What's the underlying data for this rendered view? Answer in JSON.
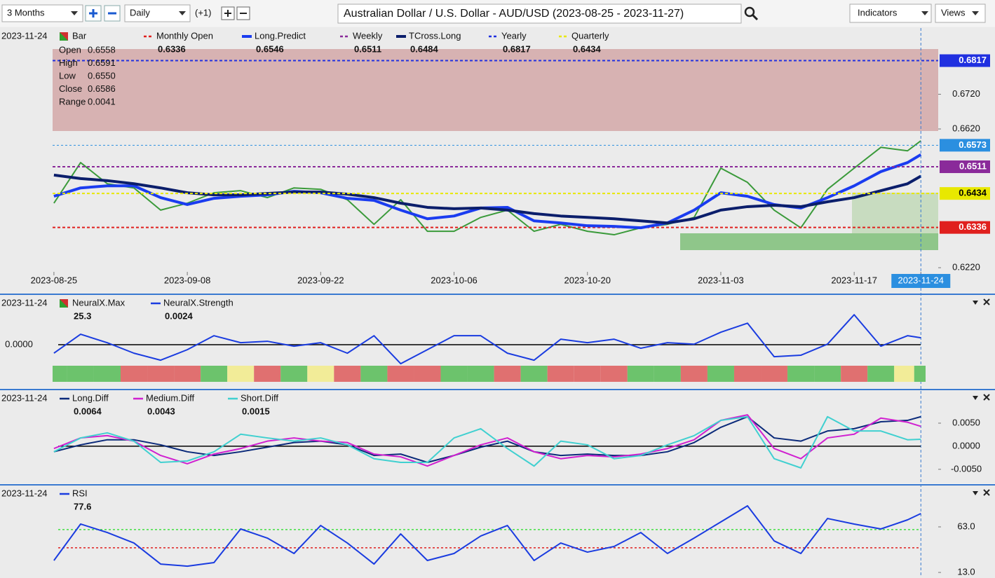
{
  "toolbar": {
    "range": "3 Months",
    "interval": "Daily",
    "offset": "(+1)",
    "title": "Australian Dollar / U.S. Dollar - AUD/USD (2023-08-25 - 2023-11-27)",
    "indicators": "Indicators",
    "views": "Views"
  },
  "chart_data": [
    {
      "type": "line",
      "date": "2023-11-24",
      "ohlc": [
        {
          "name": "Open",
          "value": 0.6558
        },
        {
          "name": "High",
          "value": 0.6591
        },
        {
          "name": "Low",
          "value": 0.655,
          "label": "0.6550"
        },
        {
          "name": "Close",
          "value": 0.6586
        },
        {
          "name": "Range",
          "value": 0.0041
        }
      ],
      "x": [
        0,
        2,
        4,
        6,
        8,
        10,
        12,
        14,
        16,
        18,
        20,
        22,
        24,
        26,
        28,
        30,
        32,
        34,
        36,
        38,
        40,
        42,
        44,
        46,
        48,
        50,
        52,
        54,
        56,
        58,
        60,
        62,
        64,
        65
      ],
      "xlim": [
        -0.1,
        66.3
      ],
      "xticks": [
        {
          "value": 0,
          "label": "2023-08-25"
        },
        {
          "value": 10,
          "label": "2023-09-08"
        },
        {
          "value": 20,
          "label": "2023-09-22"
        },
        {
          "value": 30,
          "label": "2023-10-06"
        },
        {
          "value": 40,
          "label": "2023-10-20"
        },
        {
          "value": 50,
          "label": "2023-11-03"
        },
        {
          "value": 60,
          "label": "2023-11-17"
        },
        {
          "value": 65,
          "label": "2023-11-24"
        }
      ],
      "cursor": 65,
      "ylim": [
        0.6204,
        0.6911
      ],
      "yticks": [
        {
          "value": 0.622,
          "label": "0.6220"
        },
        {
          "value": 0.662,
          "label": "0.6620"
        },
        {
          "value": 0.672,
          "label": "0.6720"
        }
      ],
      "last_price": {
        "value": 0.6573,
        "color": "#2b8fe0"
      },
      "series": [
        {
          "name": "Bar",
          "marker": "square",
          "color": "#3a9a3a",
          "values": [
            0.6406,
            0.6523,
            0.6462,
            0.645,
            0.6386,
            0.6406,
            0.6436,
            0.6442,
            0.6422,
            0.645,
            0.6446,
            0.6416,
            0.6345,
            0.6416,
            0.6325,
            0.6325,
            0.6365,
            0.6386,
            0.6325,
            0.6345,
            0.6325,
            0.6315,
            0.6335,
            0.6345,
            0.6365,
            0.6507,
            0.6466,
            0.6386,
            0.6335,
            0.6446,
            0.6507,
            0.6567,
            0.6557,
            0.6586
          ]
        },
        {
          "name": "Monthly Open",
          "color": "#e0201e",
          "style": "dotted",
          "value": 0.6336,
          "level": true
        },
        {
          "name": "Long.Predict",
          "color": "#1a3cf0",
          "width": 4,
          "value": 0.6546,
          "values": [
            0.6426,
            0.645,
            0.6456,
            0.6456,
            0.6422,
            0.6402,
            0.642,
            0.6426,
            0.643,
            0.644,
            0.6436,
            0.642,
            0.6414,
            0.6386,
            0.6361,
            0.6369,
            0.6392,
            0.6394,
            0.6355,
            0.6349,
            0.6341,
            0.6339,
            0.6335,
            0.6349,
            0.6386,
            0.6436,
            0.6426,
            0.6402,
            0.6392,
            0.6422,
            0.6456,
            0.6497,
            0.6523,
            0.6546
          ]
        },
        {
          "name": "Weekly",
          "color": "#8a2a9a",
          "style": "dotted",
          "value": 0.6511,
          "level": true
        },
        {
          "name": "TCross.Long",
          "color": "#0b1e6b",
          "width": 4,
          "value": 0.6484,
          "values": [
            0.6487,
            0.6477,
            0.6471,
            0.6462,
            0.645,
            0.6436,
            0.643,
            0.643,
            0.6434,
            0.6438,
            0.6438,
            0.6432,
            0.6422,
            0.6406,
            0.6394,
            0.639,
            0.6392,
            0.6386,
            0.6376,
            0.6369,
            0.6365,
            0.6361,
            0.6355,
            0.6349,
            0.6361,
            0.6386,
            0.6396,
            0.64,
            0.6396,
            0.641,
            0.6422,
            0.6442,
            0.6462,
            0.6484
          ]
        },
        {
          "name": "Yearly",
          "color": "#2030e0",
          "style": "dotted",
          "value": 0.6817,
          "level": true
        },
        {
          "name": "Quarterly",
          "color": "#e8e800",
          "style": "dotted",
          "value": 0.6434,
          "level": true
        }
      ]
    },
    {
      "type": "line",
      "date": "2023-11-24",
      "x": [
        0,
        2,
        4,
        6,
        8,
        10,
        12,
        14,
        16,
        18,
        20,
        22,
        24,
        26,
        28,
        30,
        32,
        34,
        36,
        38,
        40,
        42,
        44,
        46,
        48,
        50,
        52,
        54,
        56,
        58,
        60,
        62,
        64,
        65
      ],
      "xlim": [
        -0.1,
        66.3
      ],
      "ylim": [
        -0.0072,
        0.013
      ],
      "yticks": [
        {
          "value": 0,
          "label": "0.0000"
        }
      ],
      "series": [
        {
          "name": "NeuralX.Max",
          "marker": "square",
          "value": 25.3,
          "colors": [
            "#6cc36c",
            "#6cc36c",
            "#6cc36c",
            "#e07070",
            "#e07070",
            "#e07070",
            "#6cc36c",
            "#f2ec98",
            "#e07070",
            "#6cc36c",
            "#f2ec98",
            "#e07070",
            "#6cc36c",
            "#e07070",
            "#e07070",
            "#6cc36c",
            "#6cc36c",
            "#e07070",
            "#6cc36c",
            "#e07070",
            "#e07070",
            "#e07070",
            "#6cc36c",
            "#6cc36c",
            "#e07070",
            "#6cc36c",
            "#e07070",
            "#e07070",
            "#6cc36c",
            "#6cc36c",
            "#e07070",
            "#6cc36c",
            "#f2ec98",
            "#6cc36c"
          ]
        },
        {
          "name": "NeuralX.Strength",
          "color": "#1a3ce0",
          "value": 0.0024,
          "values": [
            -0.0029,
            0.0036,
            0.0007,
            -0.0029,
            -0.0053,
            -0.0017,
            0.0031,
            0.0007,
            0.0012,
            -0.0005,
            0.0007,
            -0.0029,
            0.0031,
            -0.0065,
            -0.0017,
            0.0031,
            0.0031,
            -0.0029,
            -0.0053,
            0.0019,
            0.0007,
            0.0019,
            -0.0012,
            0.0007,
            0.0002,
            0.0043,
            0.0074,
            -0.0041,
            -0.0036,
            0.0002,
            0.0103,
            -0.0005,
            0.0031,
            0.0024
          ]
        }
      ]
    },
    {
      "type": "line",
      "date": "2023-11-24",
      "x": [
        0,
        2,
        4,
        6,
        8,
        10,
        12,
        14,
        16,
        18,
        20,
        22,
        24,
        26,
        28,
        30,
        32,
        34,
        36,
        38,
        40,
        42,
        44,
        46,
        48,
        50,
        52,
        54,
        56,
        58,
        60,
        62,
        64,
        65
      ],
      "xlim": [
        -0.1,
        66.3
      ],
      "ylim": [
        -0.0073,
        0.0094
      ],
      "yticks": [
        {
          "value": -0.005,
          "label": "-0.0050"
        },
        {
          "value": 0,
          "label": "0.0000"
        },
        {
          "value": 0.005,
          "label": "0.0050"
        }
      ],
      "series": [
        {
          "name": "Long.Diff",
          "color": "#0b2a7a",
          "value": 0.0064,
          "values": [
            -0.0012,
            0.0003,
            0.0014,
            0.0014,
            0.0003,
            -0.0012,
            -0.002,
            -0.0012,
            -0.0002,
            0.0008,
            0.0011,
            0.0003,
            -0.002,
            -0.0017,
            -0.0035,
            -0.002,
            -0.0002,
            0.0011,
            -0.0012,
            -0.002,
            -0.0017,
            -0.002,
            -0.002,
            -0.0012,
            0.0008,
            0.0041,
            0.0064,
            0.0018,
            0.0011,
            0.0033,
            0.0038,
            0.0053,
            0.0056,
            0.0064
          ]
        },
        {
          "name": "Medium.Diff",
          "color": "#d020d0",
          "value": 0.0043,
          "values": [
            -0.0005,
            0.0018,
            0.0023,
            0.0011,
            -0.002,
            -0.0038,
            -0.0017,
            -0.0005,
            0.0011,
            0.0018,
            0.0011,
            0.0008,
            -0.0017,
            -0.0023,
            -0.0043,
            -0.002,
            0.0003,
            0.0018,
            -0.0012,
            -0.0027,
            -0.002,
            -0.0023,
            -0.0017,
            -0.0005,
            0.0014,
            0.0056,
            0.0068,
            -0.0005,
            -0.0027,
            0.0018,
            0.0026,
            0.0061,
            0.0052,
            0.0043
          ]
        },
        {
          "name": "Short.Diff",
          "color": "#40d0d0",
          "value": 0.0015,
          "values": [
            -0.0012,
            0.0018,
            0.0029,
            0.0011,
            -0.0035,
            -0.0032,
            -0.0012,
            0.0026,
            0.0018,
            0.0011,
            0.0018,
            0.0003,
            -0.0027,
            -0.0035,
            -0.0035,
            0.0018,
            0.0038,
            -0.0005,
            -0.0043,
            0.0011,
            0.0003,
            -0.0027,
            -0.002,
            0.0003,
            0.0023,
            0.0056,
            0.0064,
            -0.0027,
            -0.0047,
            0.0064,
            0.0033,
            0.0033,
            0.0014,
            0.0015
          ]
        }
      ]
    },
    {
      "type": "line",
      "date": "2023-11-24",
      "x": [
        0,
        2,
        4,
        6,
        8,
        10,
        12,
        14,
        16,
        18,
        20,
        22,
        24,
        26,
        28,
        30,
        32,
        34,
        36,
        38,
        40,
        42,
        44,
        46,
        48,
        50,
        52,
        54,
        56,
        58,
        60,
        62,
        64,
        65
      ],
      "xlim": [
        -0.1,
        66.3
      ],
      "ylim": [
        9.2,
        95.3
      ],
      "yticks": [
        {
          "value": 13,
          "label": "13.0"
        },
        {
          "value": 63,
          "label": "63.0"
        }
      ],
      "levels": [
        {
          "value": 60,
          "color": "#40e040"
        },
        {
          "value": 40,
          "color": "#e02020"
        }
      ],
      "series": [
        {
          "name": "RSI",
          "color": "#1a3ce0",
          "value": 77.6,
          "values": [
            26.1,
            66.1,
            56.8,
            45.3,
            22.2,
            19.9,
            23.8,
            60.7,
            50.7,
            33.8,
            64.5,
            45.3,
            22.2,
            55.3,
            26.1,
            33.8,
            53.0,
            64.5,
            26.1,
            45.3,
            35.3,
            41.5,
            56.8,
            33.8,
            50.7,
            68.4,
            86.1,
            47.6,
            33.8,
            72.2,
            66.1,
            60.7,
            70.7,
            77.6
          ]
        }
      ]
    }
  ]
}
